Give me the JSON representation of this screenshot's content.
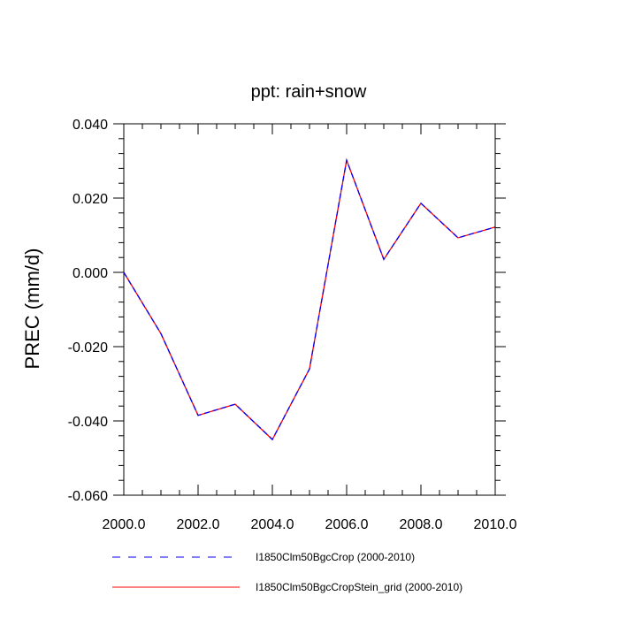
{
  "chart_data": {
    "type": "line",
    "title": "ppt: rain+snow",
    "xlabel": "",
    "ylabel": "PREC  (mm/d)",
    "xlim": [
      2000,
      2010
    ],
    "ylim": [
      -0.06,
      0.04
    ],
    "xticks": [
      2000,
      2002,
      2004,
      2006,
      2008,
      2010
    ],
    "xtick_labels": [
      "2000.0",
      "2002.0",
      "2004.0",
      "2006.0",
      "2008.0",
      "2010.0"
    ],
    "yticks": [
      0.04,
      0.02,
      0.0,
      -0.02,
      -0.04,
      -0.06
    ],
    "ytick_labels": [
      "0.040",
      "0.020",
      "0.000",
      "-0.020",
      "-0.040",
      "-0.060"
    ],
    "grid": false,
    "legend_position": "bottom",
    "x": [
      2000,
      2001,
      2002,
      2003,
      2004,
      2005,
      2006,
      2007,
      2008,
      2009,
      2010
    ],
    "series": [
      {
        "name": "I1850Clm50BgcCrop (2000-2010)",
        "color": "#0000ff",
        "style": "dashed",
        "values": [
          0.0,
          -0.0165,
          -0.0385,
          -0.0355,
          -0.045,
          -0.026,
          0.0302,
          0.0035,
          0.0186,
          0.0093,
          0.0122
        ]
      },
      {
        "name": "I1850Clm50BgcCropStein_grid (2000-2010)",
        "color": "#ff0000",
        "style": "solid",
        "values": [
          0.0,
          -0.0165,
          -0.0385,
          -0.0355,
          -0.045,
          -0.026,
          0.0302,
          0.0035,
          0.0186,
          0.0093,
          0.0122
        ]
      }
    ]
  }
}
